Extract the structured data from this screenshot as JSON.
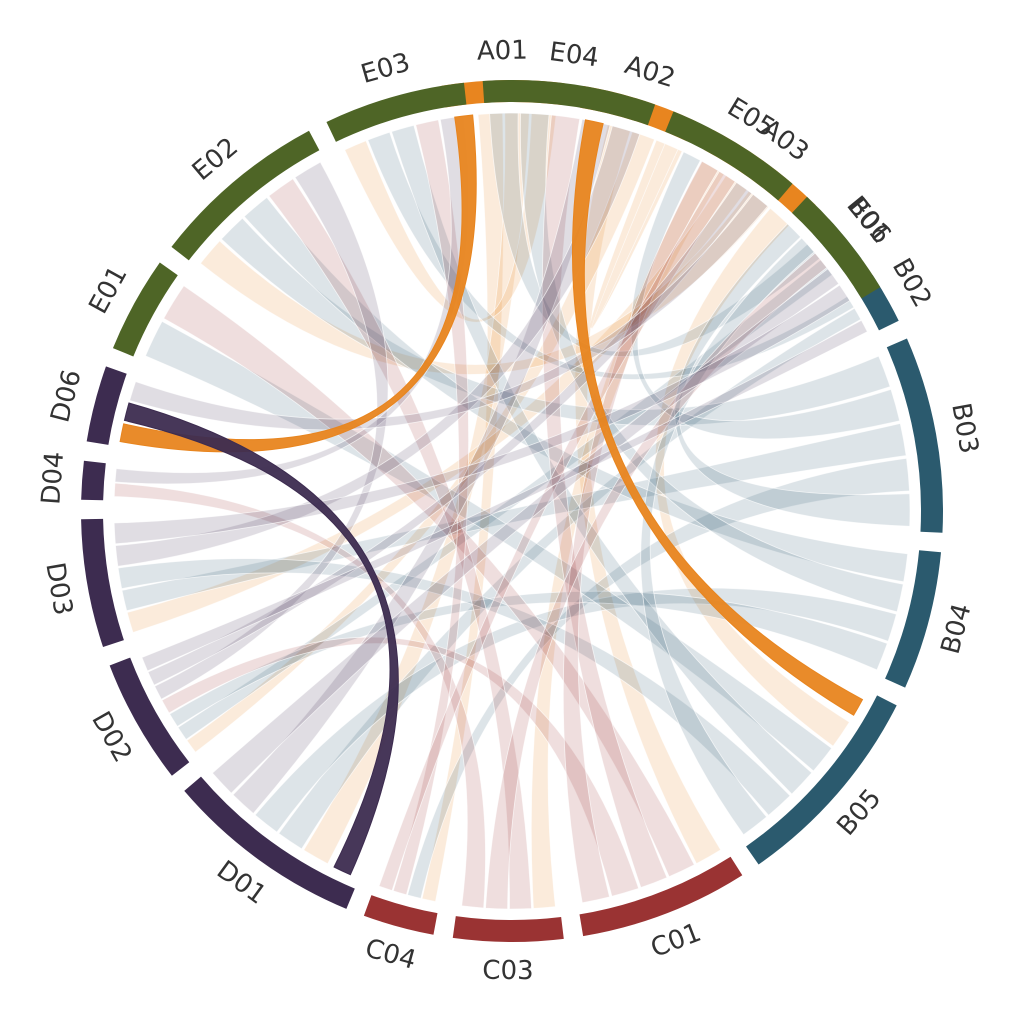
{
  "chart_data": {
    "type": "chord",
    "groups": [
      {
        "id": "A",
        "color": "#e8851f",
        "segments": [
          {
            "label": "A01",
            "start": -9.4,
            "end": 7.0
          },
          {
            "label": "A02",
            "start": 9.6,
            "end": 25.3
          },
          {
            "label": "A03",
            "start": 27.9,
            "end": 44.8
          }
        ]
      },
      {
        "id": "B",
        "color": "#2b5a6e",
        "segments": [
          {
            "label": "B01",
            "start": 47.3,
            "end": 54.2
          },
          {
            "label": "B02",
            "start": 56.8,
            "end": 63.8
          },
          {
            "label": "B03",
            "start": 66.4,
            "end": 92.9
          },
          {
            "label": "B04",
            "start": 95.5,
            "end": 114.2
          },
          {
            "label": "B05",
            "start": 116.8,
            "end": 145.1
          }
        ]
      },
      {
        "id": "C",
        "color": "#9a3333",
        "segments": [
          {
            "label": "C01",
            "start": 147.7,
            "end": 170.5
          },
          {
            "label": "C03",
            "start": 173.1,
            "end": 187.9
          },
          {
            "label": "C04",
            "start": 190.5,
            "end": 200.1
          }
        ]
      },
      {
        "id": "D",
        "color": "#3d2c50",
        "segments": [
          {
            "label": "D01",
            "start": 202.6,
            "end": 229.5
          },
          {
            "label": "D02",
            "start": 232.1,
            "end": 249.0
          },
          {
            "label": "D03",
            "start": 251.6,
            "end": 268.9
          },
          {
            "label": "D04",
            "start": 271.5,
            "end": 276.7
          },
          {
            "label": "D06",
            "start": 279.3,
            "end": 289.6
          }
        ]
      },
      {
        "id": "E",
        "color": "#4e6526",
        "segments": [
          {
            "label": "E01",
            "start": 292.2,
            "end": 305.2
          },
          {
            "label": "E02",
            "start": 307.8,
            "end": 331.9
          },
          {
            "label": "E03",
            "start": 334.5,
            "end": 353.6
          },
          {
            "label": "E04",
            "start": 356.1,
            "end": 379.4
          },
          {
            "label": "E05",
            "start": 382.0,
            "end": 400.6
          },
          {
            "label": "E06",
            "start": 403.2,
            "end": 418.7
          }
        ]
      }
    ],
    "ribbons": [
      {
        "from": "A01",
        "to": "D06",
        "highlight": true
      },
      {
        "from": "A02",
        "to": "B05",
        "highlight": true
      },
      {
        "from": "D01",
        "to": "D06",
        "highlight": true
      },
      {
        "from": "A01",
        "to": "C04"
      },
      {
        "from": "A01",
        "to": "D01"
      },
      {
        "from": "A01",
        "to": "E03"
      },
      {
        "from": "A02",
        "to": "C01"
      },
      {
        "from": "A02",
        "to": "D02"
      },
      {
        "from": "A02",
        "to": "E05"
      },
      {
        "from": "A03",
        "to": "C03"
      },
      {
        "from": "A03",
        "to": "D03"
      },
      {
        "from": "A03",
        "to": "E02"
      },
      {
        "from": "A03",
        "to": "B05"
      },
      {
        "from": "B01",
        "to": "E04"
      },
      {
        "from": "B01",
        "to": "D02"
      },
      {
        "from": "B02",
        "to": "E03"
      },
      {
        "from": "B02",
        "to": "D01"
      },
      {
        "from": "B03",
        "to": "E02"
      },
      {
        "from": "B03",
        "to": "E05"
      },
      {
        "from": "B03",
        "to": "D03"
      },
      {
        "from": "B03",
        "to": "C04"
      },
      {
        "from": "B03",
        "to": "E06"
      },
      {
        "from": "B04",
        "to": "E02"
      },
      {
        "from": "B04",
        "to": "E04"
      },
      {
        "from": "B04",
        "to": "D01"
      },
      {
        "from": "B04",
        "to": "D02"
      },
      {
        "from": "B05",
        "to": "E01"
      },
      {
        "from": "B05",
        "to": "E03"
      },
      {
        "from": "B05",
        "to": "D03"
      },
      {
        "from": "B05",
        "to": "E06"
      },
      {
        "from": "C01",
        "to": "E01"
      },
      {
        "from": "C01",
        "to": "E04"
      },
      {
        "from": "C01",
        "to": "D02"
      },
      {
        "from": "C01",
        "to": "E05"
      },
      {
        "from": "C03",
        "to": "E02"
      },
      {
        "from": "C03",
        "to": "E06"
      },
      {
        "from": "C03",
        "to": "D04"
      },
      {
        "from": "C04",
        "to": "E03"
      },
      {
        "from": "C04",
        "to": "E05"
      },
      {
        "from": "D01",
        "to": "E04"
      },
      {
        "from": "D01",
        "to": "E06"
      },
      {
        "from": "D02",
        "to": "E02"
      },
      {
        "from": "D02",
        "to": "E05"
      },
      {
        "from": "D03",
        "to": "E04"
      },
      {
        "from": "D03",
        "to": "E06"
      },
      {
        "from": "D04",
        "to": "E03"
      },
      {
        "from": "D06",
        "to": "E05"
      },
      {
        "from": "D02",
        "to": "B02"
      }
    ]
  }
}
